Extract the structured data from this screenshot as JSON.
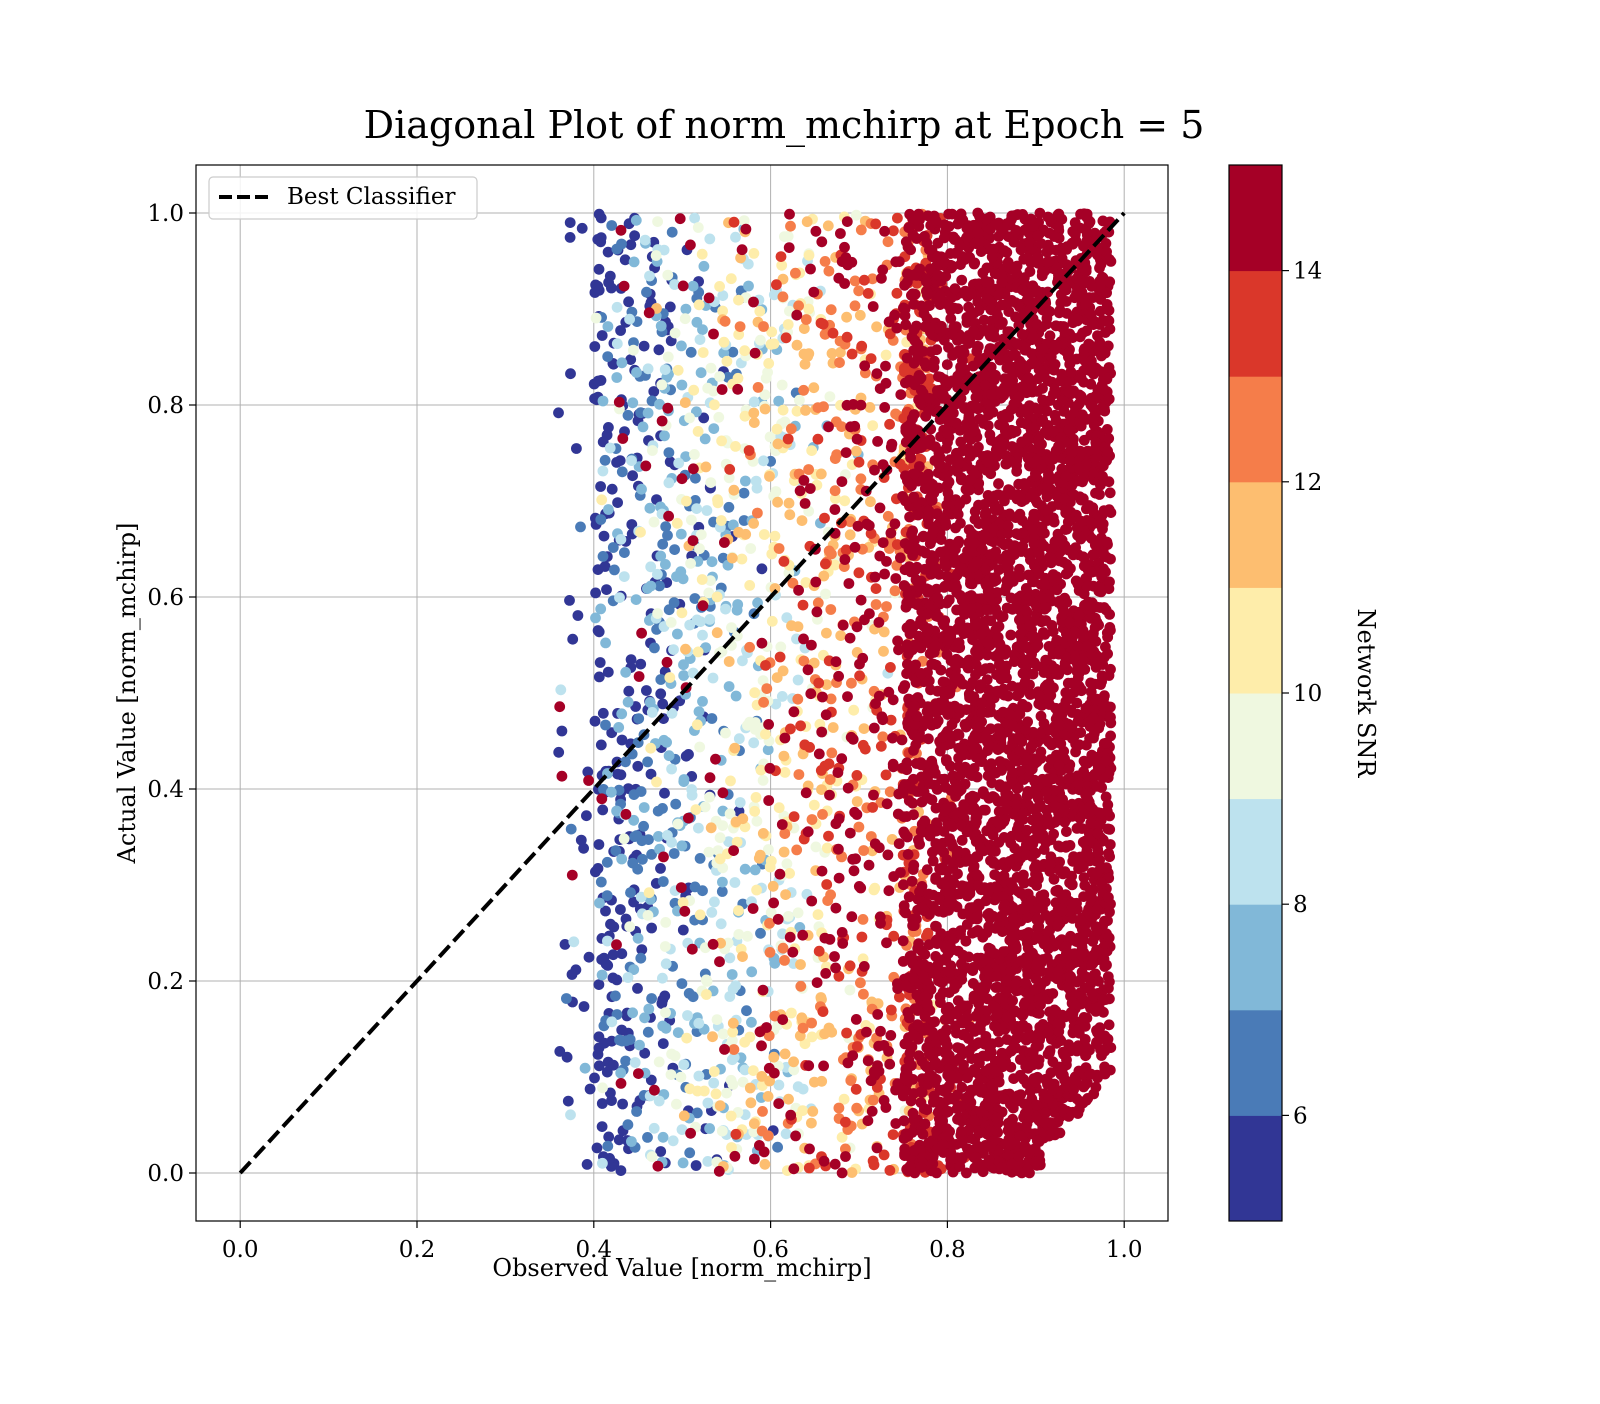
{
  "chart_data": {
    "type": "scatter",
    "title": "Diagonal Plot of norm_mchirp at Epoch = 5",
    "xlabel": "Observed Value [norm_mchirp]",
    "ylabel": "Actual Value [norm_mchirp]",
    "xlim": [
      -0.05,
      1.05
    ],
    "ylim": [
      -0.05,
      1.05
    ],
    "xticks": [
      0.0,
      0.2,
      0.4,
      0.6,
      0.8,
      1.0
    ],
    "yticks": [
      0.0,
      0.2,
      0.4,
      0.6,
      0.8,
      1.0
    ],
    "xtick_labels": [
      "0.0",
      "0.2",
      "0.4",
      "0.6",
      "0.8",
      "1.0"
    ],
    "ytick_labels": [
      "0.0",
      "0.2",
      "0.4",
      "0.6",
      "0.8",
      "1.0"
    ],
    "grid": true,
    "legend": {
      "placement": "upper-left",
      "entries": [
        {
          "label": "Best Classifier",
          "style": "dashed",
          "color": "#000000"
        }
      ]
    },
    "diagonal_line": {
      "name": "Best Classifier",
      "x": [
        0.0,
        1.0
      ],
      "y": [
        0.0,
        1.0
      ]
    },
    "scatter_pattern": {
      "x_range": [
        0.36,
        1.0
      ],
      "y_range": [
        0.0,
        1.0
      ],
      "color_variable": "Network SNR",
      "trend": "higher observed values correspond to higher Network SNR; points beyond ~0.75 are mostly SNR >= 14"
    },
    "colorbar": {
      "label": "Network SNR",
      "range": [
        5,
        15
      ],
      "ticks": [
        6,
        8,
        10,
        12,
        14
      ],
      "tick_labels": [
        "6",
        "8",
        "10",
        "12",
        "14"
      ],
      "boundaries": [
        5,
        6,
        7,
        8,
        9,
        10,
        11,
        12,
        13,
        14,
        15
      ],
      "colors": [
        "#313695",
        "#4a7bb7",
        "#81b8d8",
        "#bde2ee",
        "#eff8e0",
        "#feedaa",
        "#fdbe70",
        "#f57d4a",
        "#da372a",
        "#a50026"
      ]
    }
  }
}
